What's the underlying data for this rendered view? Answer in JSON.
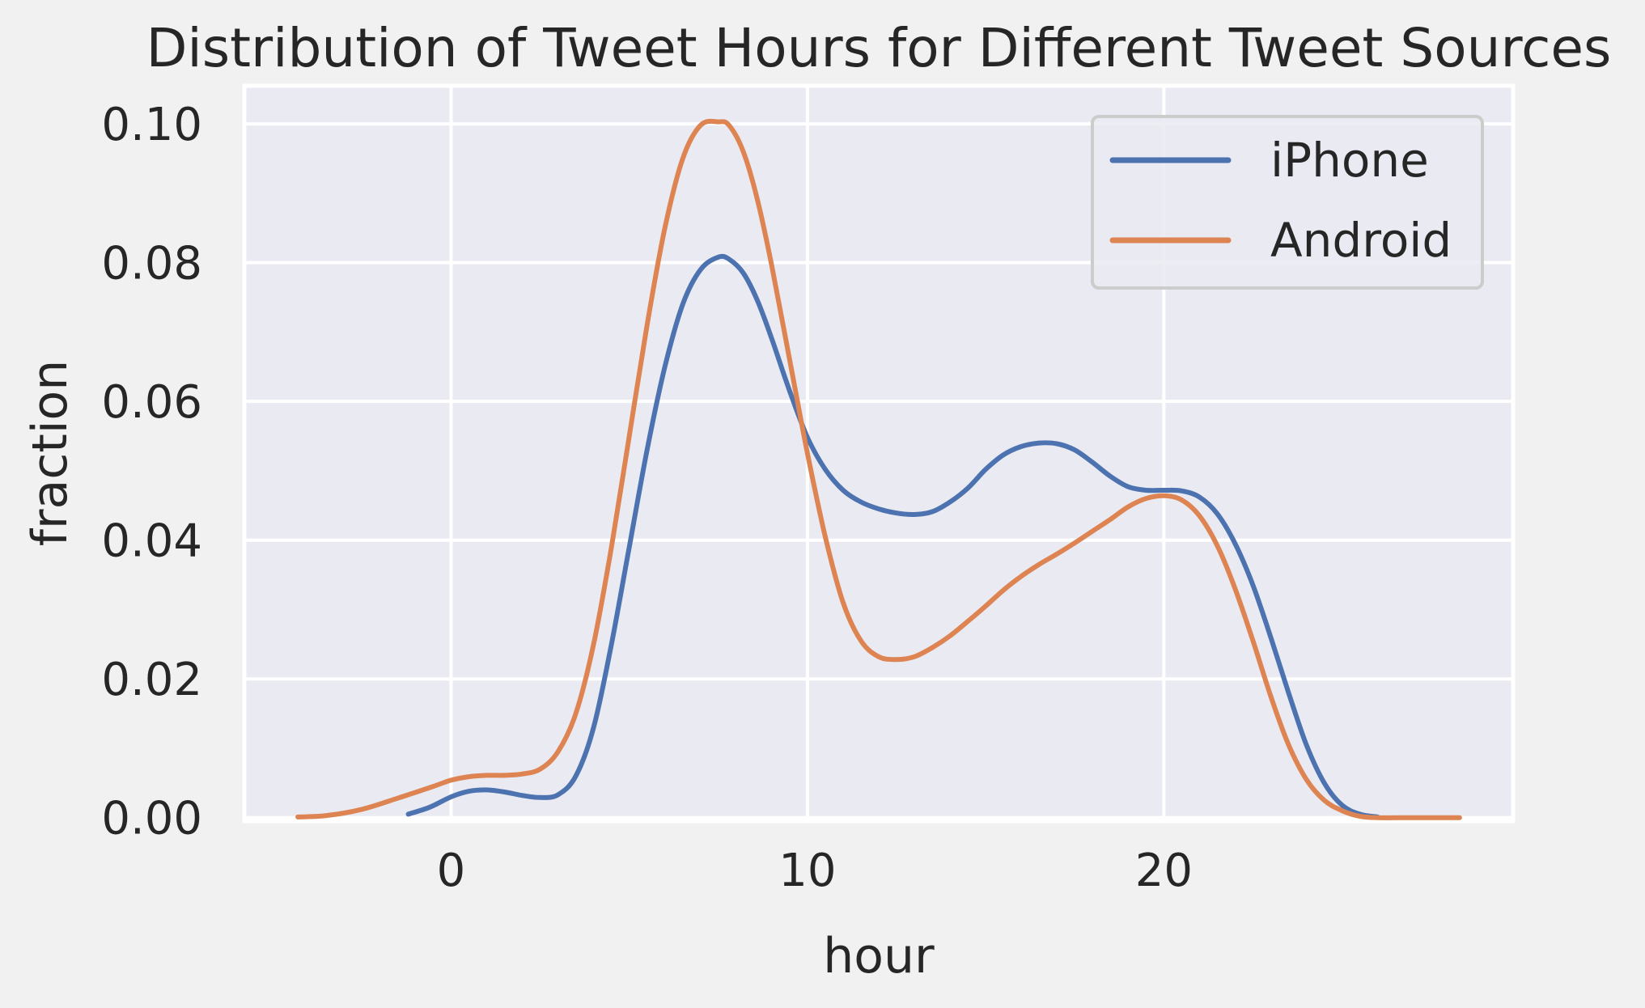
{
  "chart_data": {
    "type": "line",
    "title": "Distribution of Tweet Hours for Different Tweet Sources",
    "xlabel": "hour",
    "ylabel": "fraction",
    "xlim": [
      -5.8,
      29.8
    ],
    "ylim": [
      -0.0005,
      0.1055
    ],
    "xticks": [
      {
        "value": 0,
        "label": "0"
      },
      {
        "value": 10,
        "label": "10"
      },
      {
        "value": 20,
        "label": "20"
      }
    ],
    "yticks": [
      {
        "value": 0.0,
        "label": "0.00"
      },
      {
        "value": 0.02,
        "label": "0.02"
      },
      {
        "value": 0.04,
        "label": "0.04"
      },
      {
        "value": 0.06,
        "label": "0.06"
      },
      {
        "value": 0.08,
        "label": "0.08"
      },
      {
        "value": 0.1,
        "label": "0.10"
      }
    ],
    "grid": true,
    "legend_position": "top-right",
    "colors": {
      "iPhone": "#4c72b0",
      "Android": "#dd8452",
      "plot_bg": "#eaeaf2",
      "grid": "#ffffff",
      "text": "#262626"
    },
    "series": [
      {
        "name": "iPhone",
        "x": [
          -1.2,
          -0.6,
          0,
          0.5,
          1,
          1.5,
          2,
          2.5,
          3,
          3.5,
          4,
          4.5,
          5,
          5.5,
          6,
          6.5,
          7,
          7.5,
          7.8,
          8.2,
          8.6,
          9,
          9.5,
          10,
          10.5,
          11,
          11.5,
          12,
          12.5,
          13,
          13.5,
          14,
          14.5,
          15,
          15.5,
          16,
          16.5,
          17,
          17.5,
          18,
          18.5,
          19,
          19.5,
          20,
          20.5,
          21,
          21.5,
          22,
          22.5,
          23,
          23.5,
          24,
          24.5,
          25,
          25.5,
          26
        ],
        "y": [
          0.0005,
          0.0015,
          0.003,
          0.0038,
          0.004,
          0.0037,
          0.0032,
          0.0029,
          0.0033,
          0.006,
          0.013,
          0.025,
          0.039,
          0.053,
          0.065,
          0.074,
          0.079,
          0.0808,
          0.0805,
          0.0785,
          0.0745,
          0.069,
          0.0615,
          0.0548,
          0.0502,
          0.0472,
          0.0455,
          0.0445,
          0.0439,
          0.0437,
          0.0441,
          0.0455,
          0.0475,
          0.0502,
          0.0523,
          0.0535,
          0.054,
          0.0539,
          0.053,
          0.0512,
          0.0492,
          0.0477,
          0.0472,
          0.0472,
          0.0471,
          0.0462,
          0.0438,
          0.0395,
          0.0335,
          0.026,
          0.018,
          0.0105,
          0.005,
          0.0018,
          0.0005,
          0.0001
        ]
      },
      {
        "name": "Android",
        "x": [
          -4.3,
          -3.5,
          -2.5,
          -1.5,
          -0.5,
          0,
          0.5,
          1,
          1.5,
          2,
          2.5,
          3,
          3.5,
          4,
          4.5,
          5,
          5.5,
          6,
          6.5,
          7,
          7.5,
          7.8,
          8.2,
          8.6,
          9,
          9.5,
          10,
          10.5,
          11,
          11.5,
          12,
          12.5,
          13,
          13.5,
          14,
          14.5,
          15,
          15.5,
          16,
          16.5,
          17,
          17.5,
          18,
          18.5,
          19,
          19.5,
          20,
          20.5,
          21,
          21.5,
          22,
          22.5,
          23,
          23.5,
          24,
          24.5,
          25,
          25.5,
          26,
          27,
          28.3
        ],
        "y": [
          0.0001,
          0.0003,
          0.0012,
          0.0028,
          0.0045,
          0.0054,
          0.0059,
          0.0061,
          0.0061,
          0.0063,
          0.007,
          0.0095,
          0.015,
          0.025,
          0.039,
          0.055,
          0.071,
          0.085,
          0.095,
          0.0998,
          0.1003,
          0.0998,
          0.096,
          0.089,
          0.0795,
          0.066,
          0.0525,
          0.0405,
          0.031,
          0.0255,
          0.0232,
          0.0228,
          0.0232,
          0.0245,
          0.0262,
          0.0283,
          0.0305,
          0.0328,
          0.0348,
          0.0365,
          0.038,
          0.0396,
          0.0413,
          0.043,
          0.0448,
          0.046,
          0.0464,
          0.0458,
          0.0435,
          0.0392,
          0.033,
          0.0255,
          0.0175,
          0.0105,
          0.0055,
          0.0025,
          0.001,
          0.0002,
          0.0,
          0.0,
          0.0
        ]
      }
    ]
  }
}
